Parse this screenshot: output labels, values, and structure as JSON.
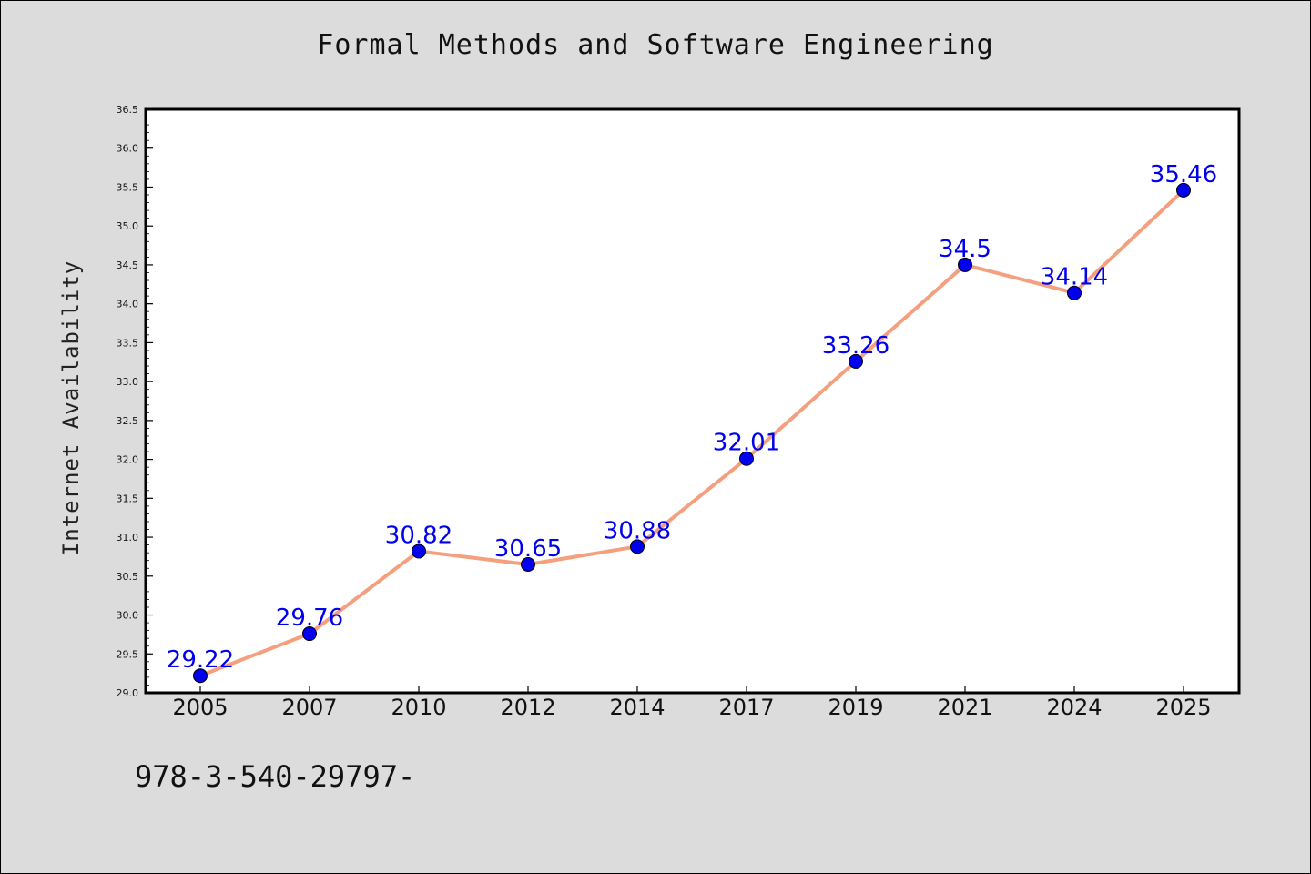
{
  "chart_data": {
    "type": "line",
    "title": "Formal Methods and Software Engineering",
    "xlabel": "",
    "ylabel": "Internet Availability",
    "categories": [
      "2005",
      "2007",
      "2010",
      "2012",
      "2014",
      "2017",
      "2019",
      "2021",
      "2024",
      "2025"
    ],
    "series": [
      {
        "values": [
          29.22,
          29.76,
          30.82,
          30.65,
          30.88,
          32.01,
          33.26,
          34.5,
          34.14,
          35.46
        ],
        "data_labels": [
          "29.22",
          "29.76",
          "30.82",
          "30.65",
          "30.88",
          "32.01",
          "33.26",
          "34.5",
          "34.14",
          "35.46"
        ],
        "line_color": "#f4a07f",
        "marker_color": "#0000ee"
      }
    ],
    "ylim": [
      29.0,
      36.5
    ],
    "yticks": [
      "29.0",
      "29.5",
      "30.0",
      "30.5",
      "31.0",
      "31.5",
      "32.0",
      "32.5",
      "33.0",
      "33.5",
      "34.0",
      "34.5",
      "35.0",
      "35.5",
      "36.0",
      "36.5"
    ],
    "grid": false,
    "label_color": "#0000ee"
  },
  "footnote": "978-3-540-29797-",
  "colors": {
    "background": "#dcdcdc",
    "plot_background": "#ffffff"
  }
}
